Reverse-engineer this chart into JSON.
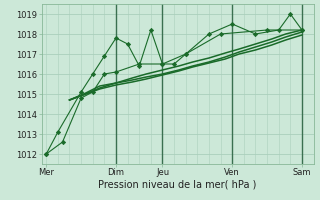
{
  "background_color": "#cce8d8",
  "grid_color": "#aacfbc",
  "line_color": "#1a6b2a",
  "marker_color": "#1a6b2a",
  "xlabel": "Pression niveau de la mer( hPa )",
  "ylim": [
    1011.5,
    1019.5
  ],
  "xlim": [
    -0.2,
    11.5
  ],
  "xtick_labels": [
    "Mer",
    "Dim",
    "Jeu",
    "Ven",
    "Sam"
  ],
  "xtick_pos": [
    0,
    3,
    5,
    8,
    11
  ],
  "ytick_labels": [
    "1012",
    "1013",
    "1014",
    "1015",
    "1016",
    "1017",
    "1018",
    "1019"
  ],
  "ytick_vals": [
    1012,
    1013,
    1014,
    1015,
    1016,
    1017,
    1018,
    1019
  ],
  "series": [
    [
      1012.0,
      1012.6,
      1014.8,
      1015.1,
      1016.0,
      1016.1,
      1016.5,
      1016.5,
      1017.0,
      1018.0,
      1018.2,
      1018.2
    ],
    [
      1012.0,
      1013.1,
      1015.1,
      1016.0,
      1016.9,
      1017.8,
      1017.5,
      1016.4,
      1018.2,
      1016.5,
      1016.5,
      1017.0,
      1018.0,
      1018.5,
      1018.0,
      1018.2,
      1019.0,
      1018.2
    ],
    [
      1014.7,
      1015.05,
      1015.4,
      1015.55,
      1015.7,
      1015.85,
      1016.0,
      1016.2,
      1016.4,
      1016.6,
      1016.85,
      1017.1,
      1017.35,
      1017.6,
      1017.85,
      1018.1
    ],
    [
      1014.7,
      1015.0,
      1015.3,
      1015.55,
      1015.8,
      1016.0,
      1016.2,
      1016.4,
      1016.6,
      1016.8,
      1017.05,
      1017.25,
      1017.5,
      1017.75,
      1018.0,
      1018.2
    ],
    [
      1014.7,
      1015.0,
      1015.25,
      1015.45,
      1015.6,
      1015.75,
      1015.95,
      1016.15,
      1016.35,
      1016.55,
      1016.75,
      1017.0,
      1017.2,
      1017.45,
      1017.7,
      1017.95
    ]
  ],
  "series_x": [
    [
      0,
      0.7,
      1.5,
      2.0,
      2.5,
      3.0,
      4.0,
      5.0,
      6.0,
      7.5,
      9.5,
      11.0
    ],
    [
      0,
      0.5,
      1.5,
      2.0,
      2.5,
      3.0,
      3.5,
      4.0,
      4.5,
      5.0,
      5.5,
      6.0,
      7.0,
      8.0,
      9.0,
      10.0,
      10.5,
      11.0
    ],
    [
      1.0,
      1.7,
      2.3,
      3.0,
      3.7,
      4.3,
      5.0,
      5.7,
      6.3,
      7.0,
      7.7,
      8.3,
      9.0,
      9.7,
      10.3,
      11.0
    ],
    [
      1.0,
      1.7,
      2.3,
      3.0,
      3.7,
      4.3,
      5.0,
      5.7,
      6.3,
      7.0,
      7.7,
      8.3,
      9.0,
      9.7,
      10.3,
      11.0
    ],
    [
      1.0,
      1.7,
      2.3,
      3.0,
      3.7,
      4.3,
      5.0,
      5.7,
      6.3,
      7.0,
      7.7,
      8.3,
      9.0,
      9.7,
      10.3,
      11.0
    ]
  ],
  "vline_pos": [
    3,
    5,
    8,
    11
  ],
  "vline_color": "#3a7050",
  "xlabel_fontsize": 7,
  "tick_fontsize": 6
}
